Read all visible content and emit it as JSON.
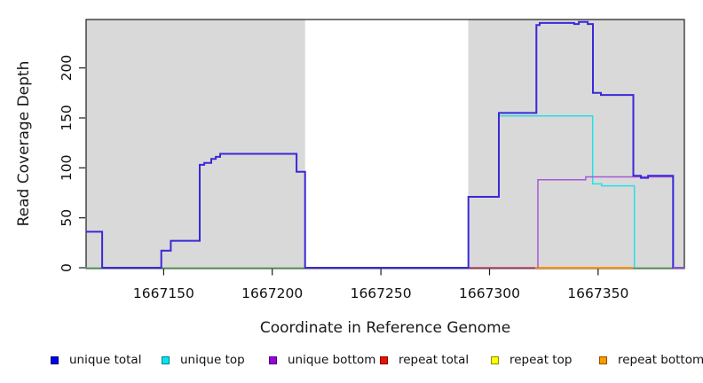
{
  "chart_data": {
    "type": "line",
    "subtype": "step-coverage",
    "title": "",
    "xlabel": "Coordinate in Reference Genome",
    "ylabel": "Read Coverage Depth",
    "xlim": [
      1667114.3,
      1667389.7
    ],
    "ylim": [
      0,
      248.5
    ],
    "x_ticks": [
      1667150,
      1667200,
      1667250,
      1667300,
      1667350
    ],
    "y_ticks": [
      0,
      50,
      100,
      150,
      200
    ],
    "grid": false,
    "legend_position": "bottom",
    "plot_background": "#ffffff",
    "box_color": "#1a1a1a",
    "shaded_regions": [
      {
        "name": "shaded-region-left",
        "x0": 1667114.3,
        "x1": 1667215.1,
        "color": "#d9d9d9"
      },
      {
        "name": "shaded-region-right",
        "x0": 1667290.2,
        "x1": 1667389.7,
        "color": "#d9d9d9"
      }
    ],
    "baseline": {
      "name": "zero-baseline",
      "color": "#6dc96d",
      "value": 0,
      "line_width": 1.3
    },
    "series": [
      {
        "name": "unique total",
        "color": "#3a28d8",
        "legend_fill": "#0000ee",
        "legend_border": "#000066",
        "line_width": 2,
        "points": [
          [
            1667114.3,
            36
          ],
          [
            1667121.7,
            0
          ],
          [
            1667148.9,
            17
          ],
          [
            1667153.3,
            27
          ],
          [
            1667166.6,
            103
          ],
          [
            1667168.7,
            105
          ],
          [
            1667171.9,
            109
          ],
          [
            1667174.0,
            111
          ],
          [
            1667176.0,
            114
          ],
          [
            1667211.2,
            96
          ],
          [
            1667215.1,
            0
          ],
          [
            1667290.3,
            71
          ],
          [
            1667304.3,
            155
          ],
          [
            1667321.6,
            243
          ],
          [
            1667323.1,
            245
          ],
          [
            1667339.0,
            244
          ],
          [
            1667341.1,
            246
          ],
          [
            1667345.2,
            244
          ],
          [
            1667347.6,
            175
          ],
          [
            1667351.3,
            173
          ],
          [
            1667366.2,
            92
          ],
          [
            1667369.7,
            90
          ],
          [
            1667373.0,
            92
          ],
          [
            1667384.5,
            0
          ],
          [
            1667389.7,
            0
          ]
        ]
      },
      {
        "name": "unique top",
        "color": "#25e0e6",
        "legend_fill": "#00e6f0",
        "legend_border": "#007a8a",
        "line_width": 1.5,
        "points": [
          [
            1667304.3,
            152
          ],
          [
            1667347.5,
            84
          ],
          [
            1667351.6,
            82
          ],
          [
            1667366.7,
            0
          ]
        ]
      },
      {
        "name": "unique bottom",
        "color": "#a55ad5",
        "legend_fill": "#9b00dd",
        "legend_border": "#4d0080",
        "line_width": 1.5,
        "points": [
          [
            1667322.3,
            0
          ],
          [
            1667322.3,
            88
          ],
          [
            1667344.3,
            91
          ],
          [
            1667384.5,
            0
          ],
          [
            1667389.7,
            0
          ]
        ]
      },
      {
        "name": "repeat total",
        "color": "#c43a6e",
        "legend_fill": "#ee1100",
        "legend_border": "#7a0000",
        "line_width": 1.5,
        "points": [
          [
            1667290.2,
            0
          ],
          [
            1667321.6,
            0
          ]
        ]
      },
      {
        "name": "repeat top",
        "color": "#e6e600",
        "legend_fill": "#ffff00",
        "legend_border": "#8a8a00",
        "line_width": 1.5,
        "points": []
      },
      {
        "name": "repeat bottom",
        "color": "#ff9200",
        "legend_fill": "#ff9900",
        "legend_border": "#8a5200",
        "line_width": 2,
        "points": [
          [
            1667321.0,
            0
          ],
          [
            1667366.2,
            0
          ]
        ]
      }
    ],
    "overlay_segments": [
      {
        "name": "unique-bottom-zero-tail",
        "color": "#a55ad5",
        "x0": 1667384.5,
        "x1": 1667389.7,
        "value": 0,
        "line_width": 1.5
      }
    ]
  }
}
